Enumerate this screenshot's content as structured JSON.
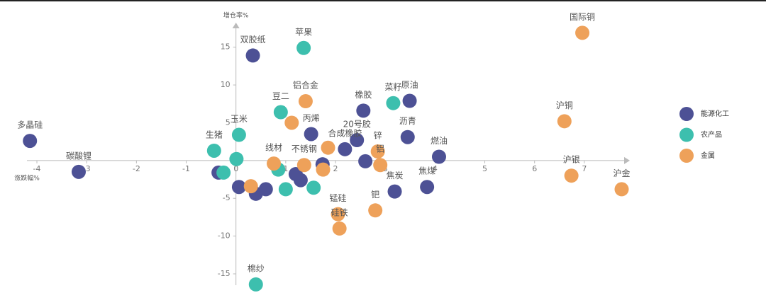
{
  "chart_data": {
    "type": "scatter",
    "x_label": "涨跌幅%",
    "y_label": "增仓率%",
    "xlim": [
      -4.2,
      7.8
    ],
    "ylim": [
      -16.5,
      17.5
    ],
    "xticks": [
      -4,
      -3,
      -2,
      -1,
      0,
      1,
      2,
      3,
      4,
      5,
      6,
      7
    ],
    "yticks": [
      -15,
      -10,
      -5,
      5,
      10,
      15
    ],
    "series": [
      {
        "name": "能源化工",
        "color": "#4d5195",
        "labels": [
          "多晶硅",
          "碳酸锂",
          "双胶纸",
          "原油",
          "橡胶",
          "沥青",
          "燃油",
          "焦煤",
          "焦炭",
          "20号胶",
          "合成橡胶",
          "丙烯",
          null,
          null,
          null,
          null,
          null,
          null,
          null,
          null
        ],
        "x": [
          -4.14,
          -3.16,
          0.34,
          3.49,
          2.56,
          3.45,
          4.08,
          3.84,
          3.19,
          2.43,
          2.19,
          1.51,
          0.06,
          0.4,
          0.6,
          1.3,
          1.74,
          2.6,
          -0.35,
          1.2
        ],
        "y": [
          2.6,
          -1.5,
          13.9,
          7.9,
          6.6,
          3.1,
          0.5,
          -3.5,
          -4.1,
          2.7,
          1.5,
          3.5,
          -3.5,
          -4.4,
          -3.8,
          -2.6,
          -0.5,
          -0.1,
          -1.6,
          -1.8
        ]
      },
      {
        "name": "农产品",
        "color": "#3dbfae",
        "labels": [
          "苹果",
          "菜籽",
          "玉米",
          "生猪",
          "豆二",
          "棉纱",
          null,
          null,
          null,
          null,
          null
        ],
        "x": [
          1.36,
          3.16,
          0.06,
          -0.44,
          0.9,
          0.4,
          0.01,
          -0.25,
          1.0,
          1.56,
          0.85
        ],
        "y": [
          14.9,
          7.6,
          3.4,
          1.3,
          6.4,
          -16.4,
          0.2,
          -1.6,
          -3.8,
          -3.6,
          -1.2
        ]
      },
      {
        "name": "金属",
        "color": "#eea15a",
        "labels": [
          "国际铜",
          "铝合金",
          "沪铜",
          "沪银",
          "沪金",
          "钯",
          "锰硅",
          "硅铁",
          "锌",
          "铝",
          "线材",
          "不锈钢",
          null,
          null,
          null,
          null
        ],
        "x": [
          6.96,
          1.4,
          6.6,
          6.74,
          7.75,
          2.8,
          2.05,
          2.08,
          2.85,
          2.9,
          0.76,
          1.37,
          0.3,
          1.75,
          1.12,
          1.85
        ],
        "y": [
          16.9,
          7.85,
          5.2,
          -2.0,
          -3.8,
          -6.6,
          -7.1,
          -9.0,
          1.2,
          -0.6,
          -0.4,
          -0.6,
          -3.4,
          -1.2,
          5.0,
          1.7
        ]
      }
    ]
  }
}
